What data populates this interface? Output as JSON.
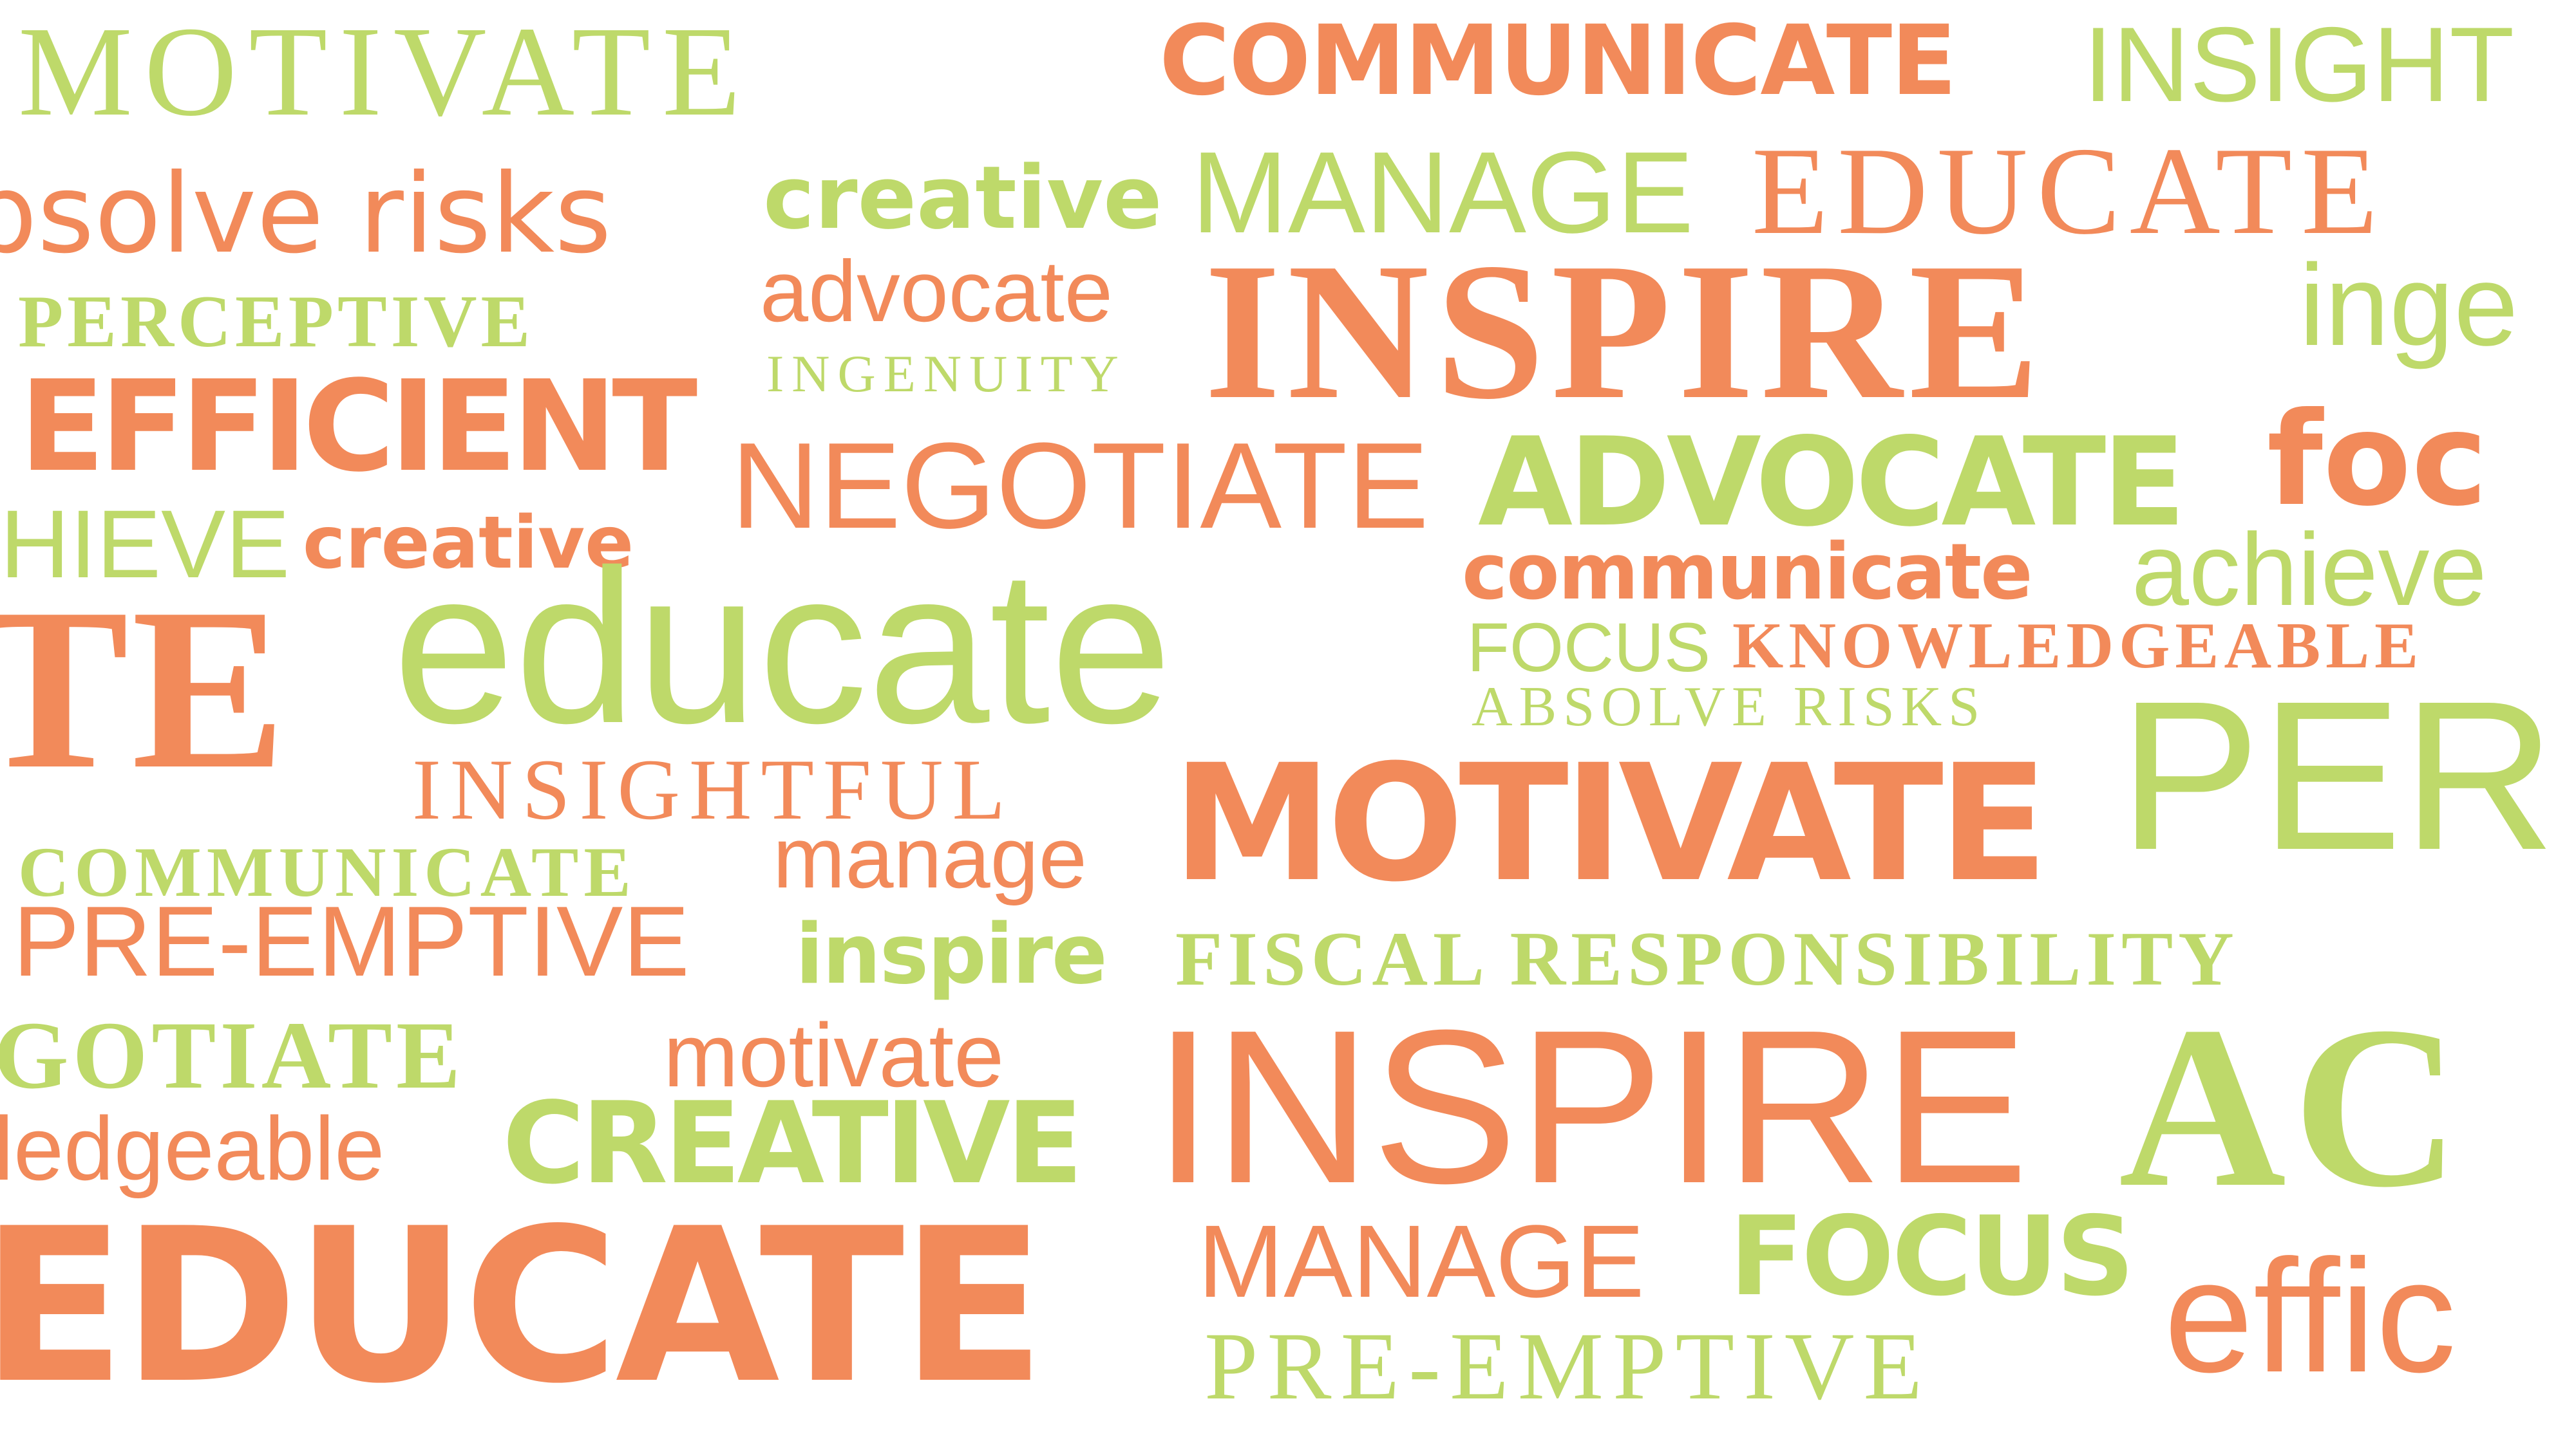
{
  "colors": {
    "orange": "#f28a5a",
    "green": "#bed96a",
    "background": "#ffffff"
  },
  "words": {
    "w01": "MOTIVATE",
    "w02": "COMMUNICATE",
    "w03": "INSIGHT",
    "w04": "bsolve risks",
    "w05": "creative",
    "w06": "MANAGE",
    "w07": "EDUCATE",
    "w08": "PERCEPTIVE",
    "w09": "advocate",
    "w10": "INGENUITY",
    "w11": "INSPIRE",
    "w12": "inge",
    "w13": "EFFICIENT",
    "w14": "NEGOTIATE",
    "w15": "ADVOCATE",
    "w16": "foc",
    "w17": "HIEVE",
    "w18": "creative",
    "w19": "communicate",
    "w20": "achieve",
    "w21": "TE",
    "w22": "educate",
    "w23": "FOCUS",
    "w24": "KNOWLEDGEABLE",
    "w25": "ABSOLVE RISKS",
    "w26": "PER",
    "w27": "INSIGHTFUL",
    "w28": "MOTIVATE",
    "w29": "COMMUNICATE",
    "w30": "manage",
    "w31": "PRE-EMPTIVE",
    "w32": "inspire",
    "w33": "FISCAL RESPONSIBILITY",
    "w34": "GOTIATE",
    "w35": "motivate",
    "w36": "INSPIRE",
    "w37": "AC",
    "w38": "ledgeable",
    "w39": "CREATIVE",
    "w40": "EDUCATE",
    "w41": "MANAGE",
    "w42": "FOCUS",
    "w43": "PRE-EMPTIVE",
    "w44": "effic"
  }
}
